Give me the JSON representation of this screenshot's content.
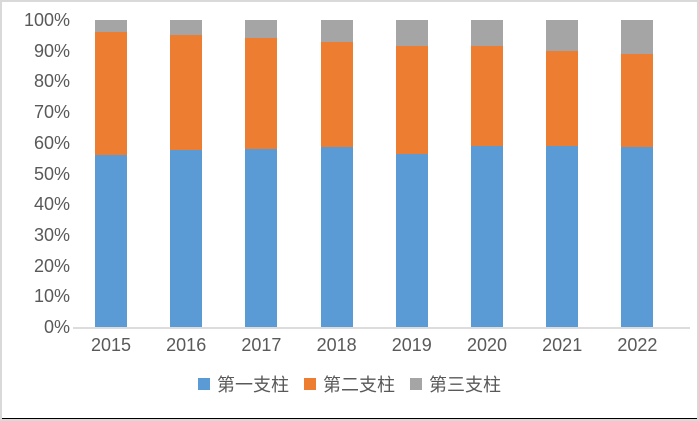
{
  "chart_data": {
    "type": "bar",
    "stacked": true,
    "stacked_100_percent": true,
    "title": "",
    "xlabel": "",
    "ylabel": "",
    "categories": [
      "2015",
      "2016",
      "2017",
      "2018",
      "2019",
      "2020",
      "2021",
      "2022"
    ],
    "series": [
      {
        "name": "第一支柱",
        "color": "#5B9BD5",
        "values": [
          56,
          57.5,
          58,
          58.5,
          56.5,
          59,
          59,
          58.5
        ]
      },
      {
        "name": "第二支柱",
        "color": "#ED7D31",
        "values": [
          40,
          37.5,
          36,
          34.5,
          35,
          32.5,
          31,
          30.5
        ]
      },
      {
        "name": "第三支柱",
        "color": "#A5A5A5",
        "values": [
          4,
          5,
          6,
          7,
          8.5,
          8.5,
          10,
          11
        ]
      }
    ],
    "y_ticks": [
      "0%",
      "10%",
      "20%",
      "30%",
      "40%",
      "50%",
      "60%",
      "70%",
      "80%",
      "90%",
      "100%"
    ],
    "ylim": [
      0,
      100
    ],
    "grid": false,
    "legend_position": "bottom"
  },
  "colors": {
    "text": "#595959",
    "axis_line": "#dcdcdc",
    "frame_border": "#d9d9d9",
    "bottom_strip": "#000000",
    "background": "#ffffff"
  }
}
